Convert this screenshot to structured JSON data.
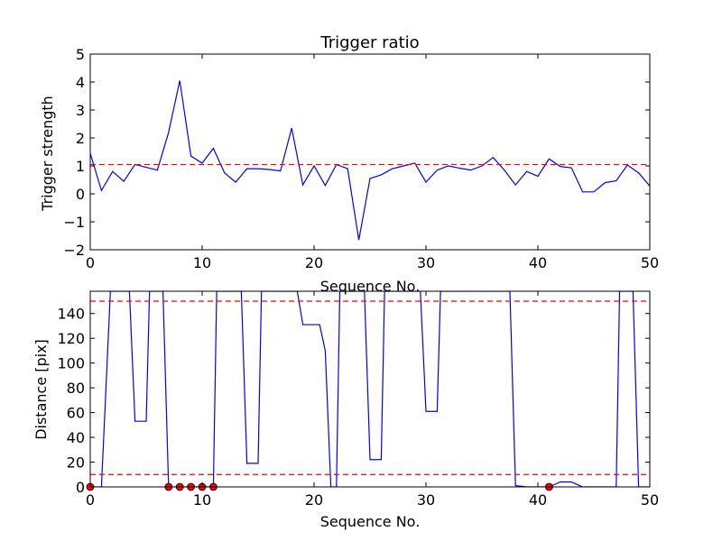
{
  "chart_data": [
    {
      "type": "line",
      "title": "Trigger ratio",
      "xlabel": "Sequence No.",
      "ylabel": "Trigger strength",
      "xlim": [
        0,
        50
      ],
      "ylim": [
        -2,
        5
      ],
      "xticks": [
        0,
        10,
        20,
        30,
        40,
        50
      ],
      "yticks": [
        -2,
        -1,
        0,
        1,
        2,
        3,
        4,
        5
      ],
      "series": [
        {
          "color": "#0000ff",
          "x": [
            0,
            1,
            2,
            3,
            4,
            5,
            6,
            7,
            8,
            9,
            10,
            11,
            12,
            13,
            14,
            15,
            16,
            17,
            18,
            19,
            20,
            21,
            22,
            23,
            24,
            25,
            26,
            27,
            28,
            29,
            30,
            31,
            32,
            33,
            34,
            35,
            36,
            37,
            38,
            39,
            40,
            41,
            42,
            43,
            44,
            45,
            46,
            47,
            48,
            49,
            50
          ],
          "values": [
            1.45,
            0.12,
            0.8,
            0.45,
            1.05,
            0.95,
            0.85,
            2.2,
            4.05,
            1.35,
            1.1,
            1.63,
            0.75,
            0.42,
            0.9,
            0.9,
            0.87,
            0.82,
            2.35,
            0.32,
            1.0,
            0.3,
            1.05,
            0.9,
            -1.65,
            0.55,
            0.68,
            0.9,
            1.0,
            1.1,
            0.42,
            0.85,
            1.0,
            0.92,
            0.85,
            1.0,
            1.3,
            0.85,
            0.32,
            0.8,
            0.63,
            1.25,
            0.98,
            0.93,
            0.07,
            0.07,
            0.4,
            0.47,
            1.03,
            0.75,
            0.28
          ]
        },
        {
          "color": "#ff0000",
          "style": "dashed",
          "x": [
            0,
            50
          ],
          "values": [
            1.05,
            1.05
          ]
        }
      ],
      "grid": false
    },
    {
      "type": "line",
      "title": "",
      "xlabel": "Sequence No.",
      "ylabel": "Distance [pix]",
      "xlim": [
        0,
        50
      ],
      "ylim": [
        0,
        158
      ],
      "xticks": [
        0,
        10,
        20,
        30,
        40,
        50
      ],
      "yticks": [
        0,
        20,
        40,
        60,
        80,
        100,
        120,
        140
      ],
      "series": [
        {
          "color": "#0000ff",
          "x": [
            0,
            1,
            1.8,
            3.5,
            4,
            5,
            5.3,
            6.5,
            7,
            8,
            9,
            10,
            11,
            11.3,
            13.5,
            14,
            15,
            15.3,
            16,
            16.3,
            18.5,
            19,
            20,
            20.5,
            21,
            21.5,
            22,
            22.3,
            24.5,
            25,
            26,
            26.3,
            27,
            27.3,
            29.5,
            30,
            31,
            31.3,
            37.5,
            38,
            39,
            40,
            41,
            42,
            43,
            44,
            45,
            46,
            47,
            47.3,
            48.5,
            49,
            50
          ],
          "values": [
            0,
            0,
            158,
            158,
            53,
            53,
            158,
            158,
            0,
            0,
            0,
            0,
            0,
            158,
            158,
            19,
            19,
            158,
            158,
            158,
            158,
            131,
            131,
            131,
            110,
            0,
            0,
            158,
            158,
            22,
            22,
            158,
            158,
            158,
            158,
            61,
            61,
            158,
            158,
            1,
            0,
            0,
            0,
            4,
            4,
            0,
            0,
            0,
            0,
            158,
            158,
            0,
            0
          ]
        },
        {
          "color": "#ff0000",
          "style": "dashed",
          "x": [
            0,
            50
          ],
          "values": [
            150,
            150
          ]
        },
        {
          "color": "#ff0000",
          "style": "dashed",
          "x": [
            0,
            50
          ],
          "values": [
            10,
            10
          ]
        },
        {
          "color": "#ff0000",
          "style": "markers",
          "x": [
            0,
            7,
            8,
            9,
            10,
            11,
            41
          ],
          "values": [
            0,
            0,
            0,
            0,
            0,
            0,
            0
          ]
        }
      ],
      "grid": false
    }
  ]
}
